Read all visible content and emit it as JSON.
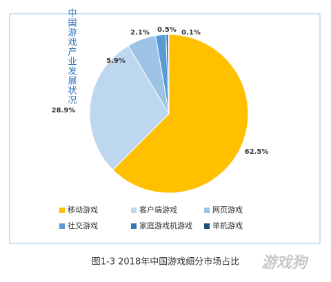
{
  "chart_data": {
    "type": "pie",
    "side_title": "中国游戏产业发展状况",
    "caption": "图1-3 2018年中国游戏细分市场占比",
    "watermark": "游戏狗",
    "categories": [
      "移动游戏",
      "客户端游戏",
      "网页游戏",
      "社交游戏",
      "家庭游戏机游戏",
      "单机游戏"
    ],
    "values": [
      62.5,
      28.9,
      5.9,
      2.1,
      0.5,
      0.1
    ],
    "value_labels": [
      "62.5%",
      "28.9%",
      "5.9%",
      "2.1%",
      "0.5%",
      "0.1%"
    ],
    "colors": [
      "#FFC000",
      "#BDD7EE",
      "#9DC3E6",
      "#5B9BD5",
      "#2E75B6",
      "#1F4E79"
    ]
  }
}
